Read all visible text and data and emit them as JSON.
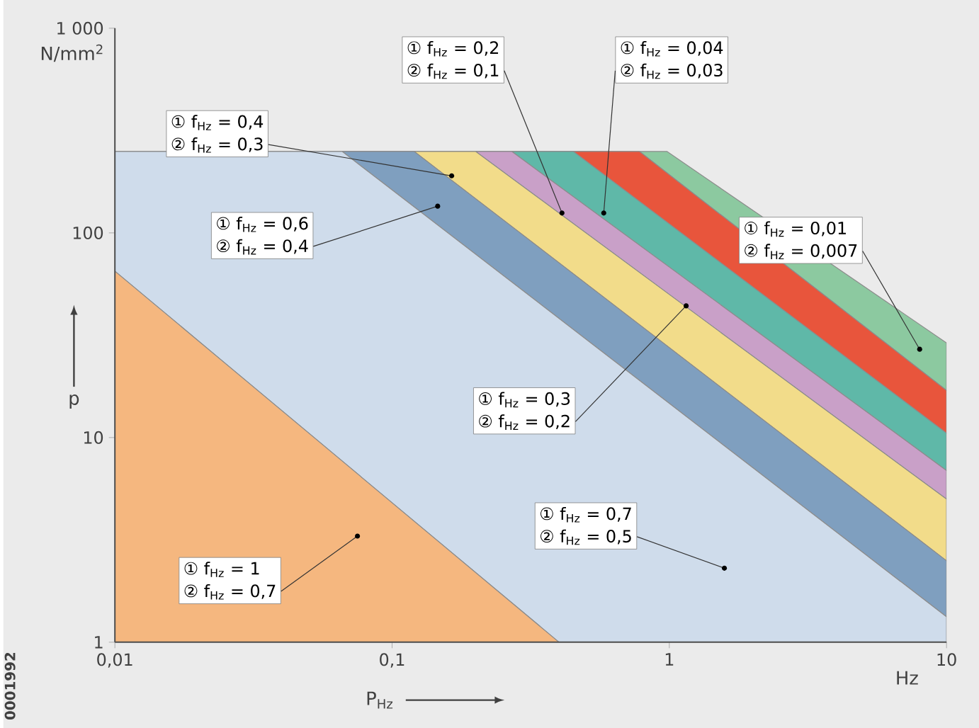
{
  "chart_data": {
    "type": "area",
    "xlabel": "P$_{Hz}$",
    "ylabel": "p",
    "log": "xy",
    "xlim": [
      0.01,
      10
    ],
    "ylim": [
      1,
      1000
    ],
    "xticks": [
      {
        "value": 0.01,
        "label": "0,01"
      },
      {
        "value": 0.1,
        "label": "0,1"
      },
      1,
      10
    ],
    "yticks": [
      1,
      10,
      100,
      {
        "value": 1000,
        "label": "1 000"
      }
    ],
    "series": [
      {
        "color": "#8cc9a0",
        "x": [
          0.01,
          0.98,
          10
        ],
        "values": [
          250,
          250,
          29
        ]
      },
      {
        "color": "#e8553c",
        "x": [
          0.01,
          0.78,
          10
        ],
        "values": [
          250,
          250,
          17
        ]
      },
      {
        "color": "#5fb8a8",
        "x": [
          0.01,
          0.45,
          10
        ],
        "values": [
          250,
          250,
          10.5
        ]
      },
      {
        "color": "#c9a0c8",
        "x": [
          0.01,
          0.27,
          10
        ],
        "values": [
          250,
          250,
          6.9
        ]
      },
      {
        "color": "#f2dc8a",
        "x": [
          0.01,
          0.2,
          10
        ],
        "values": [
          250,
          250,
          5
        ]
      },
      {
        "color": "#7f9fbf",
        "x": [
          0.01,
          0.12,
          10
        ],
        "values": [
          250,
          250,
          2.5
        ]
      },
      {
        "color": "#cfdceb",
        "x": [
          0.01,
          0.066,
          10
        ],
        "values": [
          250,
          250,
          1.33
        ]
      },
      {
        "color": "#f5b77f",
        "x": [
          0.01,
          0.4
        ],
        "values": [
          65,
          1
        ]
      }
    ],
    "annotations": [
      "N/mm$^{2}$",
      "Hz",
      "0001992",
      "① f$_{Hz}$ = 0,4",
      {
        "text": "② f$_{Hz}$ = 0,3",
        "x": 0.164,
        "y": 190
      },
      "① f$_{Hz}$ = 0,2",
      {
        "text": "② f$_{Hz}$ = 0,1",
        "x": 0.41,
        "y": 125
      },
      "① f$_{Hz}$ = 0,04",
      {
        "text": "② f$_{Hz}$ = 0,03",
        "x": 0.58,
        "y": 125
      },
      "① f$_{Hz}$ = 0,6",
      {
        "text": "② f$_{Hz}$ = 0,4",
        "x": 0.146,
        "y": 135
      },
      "① f$_{Hz}$ = 0,01",
      {
        "text": "② f$_{Hz}$ = 0,007",
        "x": 8,
        "y": 27
      },
      "① f$_{Hz}$ = 0,3",
      {
        "text": "② f$_{Hz}$ = 0,2",
        "x": 1.15,
        "y": 44
      },
      "① f$_{Hz}$ = 0,7",
      {
        "text": "② f$_{Hz}$ = 0,5",
        "x": 1.58,
        "y": 2.3
      },
      "① f$_{Hz}$ = 1",
      {
        "text": "② f$_{Hz}$ = 0,7",
        "x": 0.075,
        "y": 3.3
      }
    ]
  }
}
